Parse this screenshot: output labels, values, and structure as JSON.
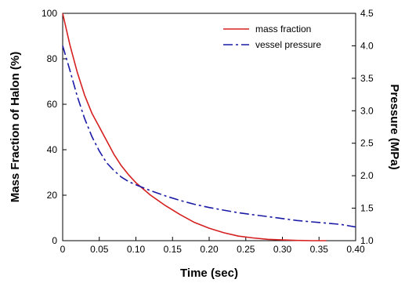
{
  "chart_data": {
    "type": "line",
    "title": "",
    "xlabel": "Time (sec)",
    "ylabel_left": "Mass Fraction of Halon (%)",
    "ylabel_right": "Pressure (MPa)",
    "xlim": [
      0,
      0.4
    ],
    "ylim_left": [
      0,
      100
    ],
    "ylim_right": [
      1.0,
      4.5
    ],
    "x_ticks": [
      "0",
      "0.05",
      "0.10",
      "0.15",
      "0.20",
      "0.25",
      "0.30",
      "0.35",
      "0.40"
    ],
    "y_left_ticks": [
      "0",
      "20",
      "40",
      "60",
      "80",
      "100"
    ],
    "y_right_ticks": [
      "1.0",
      "1.5",
      "2.0",
      "2.5",
      "3.0",
      "3.5",
      "4.0",
      "4.5"
    ],
    "grid": false,
    "legend_position": "top-right",
    "series": [
      {
        "name": "mass fraction",
        "axis": "left",
        "color": "#d62020",
        "dash": "solid",
        "x": [
          0,
          0.01,
          0.02,
          0.03,
          0.04,
          0.05,
          0.06,
          0.07,
          0.08,
          0.09,
          0.1,
          0.12,
          0.14,
          0.16,
          0.18,
          0.2,
          0.22,
          0.24,
          0.26,
          0.28,
          0.3,
          0.32,
          0.34,
          0.36
        ],
        "y": [
          100,
          86,
          74,
          64,
          56,
          50,
          44,
          38,
          33,
          29,
          25.5,
          20,
          15.5,
          11.5,
          8,
          5.5,
          3.5,
          2,
          1.2,
          0.6,
          0.3,
          0.1,
          0,
          0
        ]
      },
      {
        "name": "vessel pressure",
        "axis": "right",
        "color": "#1a1aa6",
        "dash": "dashdot",
        "x": [
          0,
          0.01,
          0.02,
          0.03,
          0.04,
          0.05,
          0.06,
          0.07,
          0.08,
          0.09,
          0.1,
          0.12,
          0.14,
          0.16,
          0.18,
          0.2,
          0.22,
          0.24,
          0.26,
          0.28,
          0.3,
          0.32,
          0.34,
          0.36,
          0.38,
          0.4
        ],
        "y": [
          4.0,
          3.62,
          3.22,
          2.88,
          2.6,
          2.38,
          2.2,
          2.08,
          1.98,
          1.91,
          1.86,
          1.77,
          1.69,
          1.62,
          1.56,
          1.51,
          1.47,
          1.43,
          1.4,
          1.37,
          1.34,
          1.31,
          1.29,
          1.27,
          1.25,
          1.21
        ]
      }
    ]
  }
}
